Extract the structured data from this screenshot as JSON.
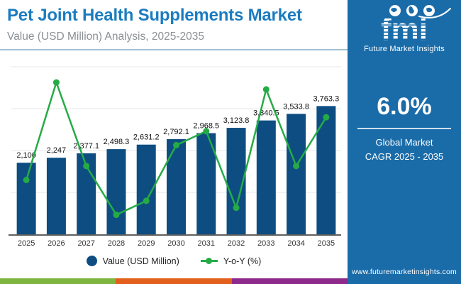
{
  "header": {
    "title": "Pet Joint Health Supplements Market",
    "subtitle": "Value (USD Million) Analysis, 2025-2035"
  },
  "sidebar": {
    "logo": {
      "brand": "fmi",
      "tagline": "Future Market Insights"
    },
    "stat": {
      "value": "6.0%",
      "label_line1": "Global Market",
      "label_line2": "CAGR 2025 - 2035"
    },
    "website": "www.futuremarketinsights.com"
  },
  "legend": {
    "value_label": "Value (USD Million)",
    "yoy_label": "Y-o-Y (%)"
  },
  "chart_data": {
    "type": "bar",
    "subtype": "bar-line-combo",
    "title": "Pet Joint Health Supplements Market",
    "xlabel": "",
    "ylabel": "",
    "categories": [
      "2025",
      "2026",
      "2027",
      "2028",
      "2029",
      "2030",
      "2031",
      "2032",
      "2033",
      "2034",
      "2035"
    ],
    "series": [
      {
        "name": "Value (USD Million)",
        "type": "bar",
        "values": [
          2100,
          2247,
          2377.1,
          2498.3,
          2631.2,
          2792.1,
          2968.5,
          3123.8,
          3340.5,
          3533.8,
          3763.3
        ],
        "labels": [
          "2,100",
          "2,247",
          "2,377.1",
          "2,498.3",
          "2,631.2",
          "2,792.1",
          "2,968.5",
          "3,123.8",
          "3,340.5",
          "3,533.8",
          "3,763.3"
        ],
        "color": "#0d4d82"
      },
      {
        "name": "Y-o-Y (%)",
        "type": "line",
        "values": [
          5.6,
          7.0,
          5.8,
          5.1,
          5.3,
          6.1,
          6.3,
          5.2,
          6.9,
          5.8,
          6.5
        ],
        "color": "#25ab46"
      }
    ],
    "value_axis": {
      "min": 0,
      "max": 5000,
      "visible": false
    },
    "yoy_axis": {
      "min": 4.8,
      "max": 7.5,
      "visible": false
    },
    "grid": "horizontal",
    "legend_position": "bottom"
  },
  "colors": {
    "title": "#1b7cc0",
    "subtitle": "#8b9094",
    "header_divider": "#a3bfd3",
    "bar": "#0d4d82",
    "line": "#25ab46",
    "gridline": "#e4e7e9",
    "axis": "#2a2a2a",
    "bar_label": "#111111",
    "tick_label": "#333333",
    "sidebar_bg": "#1a6ca9",
    "stripe_green": "#7db53f",
    "stripe_orange": "#e2601c",
    "stripe_purple": "#8d2a8b"
  }
}
